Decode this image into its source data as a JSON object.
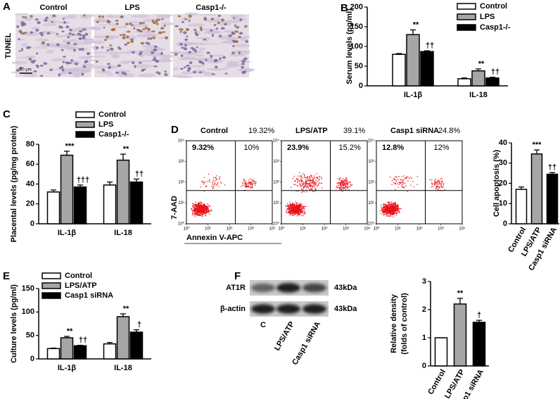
{
  "micrographs": {
    "panel": "A",
    "titles": [
      "Control",
      "LPS",
      "Casp1-/-"
    ],
    "row_label": "TUNEL",
    "scale_bar": "50 μm"
  },
  "chart_data": [
    {
      "type": "bar",
      "panel": "B",
      "y_label": [
        "Serum levels (pg/ml)"
      ],
      "categories": [
        "IL-1β",
        "IL-18"
      ],
      "series": [
        {
          "name": "Control",
          "color": "#ffffff",
          "values": [
            80,
            18
          ],
          "errors": [
            2,
            2
          ],
          "significance": [
            null,
            null
          ]
        },
        {
          "name": "LPS",
          "color": "#a6a6a6",
          "values": [
            130,
            38
          ],
          "errors": [
            12,
            5
          ],
          "significance": [
            "**",
            "**"
          ]
        },
        {
          "name": "Casp1-/-",
          "color": "#000000",
          "values": [
            87,
            20
          ],
          "errors": [
            2,
            2
          ],
          "significance": [
            "††",
            "††"
          ]
        }
      ],
      "ylim": [
        0,
        200
      ],
      "yticks": [
        0,
        50,
        100,
        150,
        200
      ]
    },
    {
      "type": "bar",
      "panel": "C",
      "y_label": [
        "Placental levels (pg/mg protein)"
      ],
      "categories": [
        "IL-1β",
        "IL-18"
      ],
      "series": [
        {
          "name": "Control",
          "color": "#ffffff",
          "values": [
            32,
            39
          ],
          "errors": [
            2,
            3
          ],
          "significance": [
            null,
            null
          ]
        },
        {
          "name": "LPS",
          "color": "#a6a6a6",
          "values": [
            69,
            64
          ],
          "errors": [
            4,
            6
          ],
          "significance": [
            "***",
            "**"
          ]
        },
        {
          "name": "Casp1-/-",
          "color": "#000000",
          "values": [
            37,
            42
          ],
          "errors": [
            2,
            3
          ],
          "significance": [
            "†††",
            "††"
          ]
        }
      ],
      "ylim": [
        0,
        80
      ],
      "yticks": [
        0,
        20,
        40,
        60,
        80
      ]
    },
    {
      "type": "bar",
      "panel": "D",
      "y_label": [
        "Cell apoptosis (%)"
      ],
      "categories": [
        "Control",
        "LPS/ATP",
        "Casp1 siRNA"
      ],
      "series": [
        {
          "colors": [
            "#ffffff",
            "#a6a6a6",
            "#000000"
          ],
          "values": [
            17,
            34.5,
            24.5
          ],
          "errors": [
            1.2,
            2,
            0.8
          ],
          "significance": [
            null,
            "***",
            "††"
          ]
        }
      ],
      "ylim": [
        0,
        40
      ],
      "yticks": [
        0,
        10,
        20,
        30,
        40
      ]
    },
    {
      "type": "bar",
      "panel": "E",
      "y_label": [
        "Culture levels (pg/ml)"
      ],
      "categories": [
        "IL-1β",
        "IL-18"
      ],
      "series": [
        {
          "name": "Control",
          "color": "#ffffff",
          "values": [
            22,
            32
          ],
          "errors": [
            1,
            3
          ],
          "significance": [
            null,
            null
          ]
        },
        {
          "name": "LPS/ATP",
          "color": "#a6a6a6",
          "values": [
            45,
            90
          ],
          "errors": [
            3,
            6
          ],
          "significance": [
            "**",
            "**"
          ]
        },
        {
          "name": "Casp1 siRNA",
          "color": "#000000",
          "values": [
            28,
            57
          ],
          "errors": [
            1,
            5
          ],
          "significance": [
            "††",
            "†"
          ]
        }
      ],
      "ylim": [
        0,
        150
      ],
      "yticks": [
        0,
        50,
        100,
        150
      ]
    },
    {
      "type": "bar",
      "panel": "F",
      "y_label": [
        "Relative density",
        "(folds of control)"
      ],
      "categories": [
        "Control",
        "LPS/ATP",
        "Casp1 siRNA"
      ],
      "series": [
        {
          "colors": [
            "#ffffff",
            "#a6a6a6",
            "#000000"
          ],
          "values": [
            1,
            2.2,
            1.55
          ],
          "errors": [
            0,
            0.2,
            0.07
          ],
          "significance": [
            null,
            "**",
            "†"
          ]
        }
      ],
      "ylim": [
        0,
        3
      ],
      "yticks": [
        0,
        1,
        2,
        3
      ]
    }
  ],
  "flow": {
    "y_label": "7-AAD",
    "x_label": "Annexin V-APC",
    "ticks": [
      {
        "value": 1,
        "label": "10⁰"
      },
      {
        "value": 10,
        "label": "10¹"
      },
      {
        "value": 100,
        "label": "10²"
      },
      {
        "value": 1000,
        "label": "10³"
      },
      {
        "value": 10000,
        "label": "10⁴"
      }
    ],
    "plots": [
      {
        "title": "Control",
        "total": "19.32%",
        "upper_left": "9.32%",
        "upper_right": "10%"
      },
      {
        "title": "LPS/ATP",
        "total": "39.1%",
        "upper_left": "23.9%",
        "upper_right": "15.2%"
      },
      {
        "title": "Casp1 siRNA",
        "total": "24.8%",
        "upper_left": "12.8%",
        "upper_right": "12%"
      }
    ]
  },
  "blot": {
    "rows": [
      {
        "label": "AT1R",
        "size": "43kDa"
      },
      {
        "label": "β-actin",
        "size": "43kDa"
      }
    ],
    "lanes": [
      "C",
      "LPS/ATP",
      "Casp1 siRNA"
    ]
  }
}
